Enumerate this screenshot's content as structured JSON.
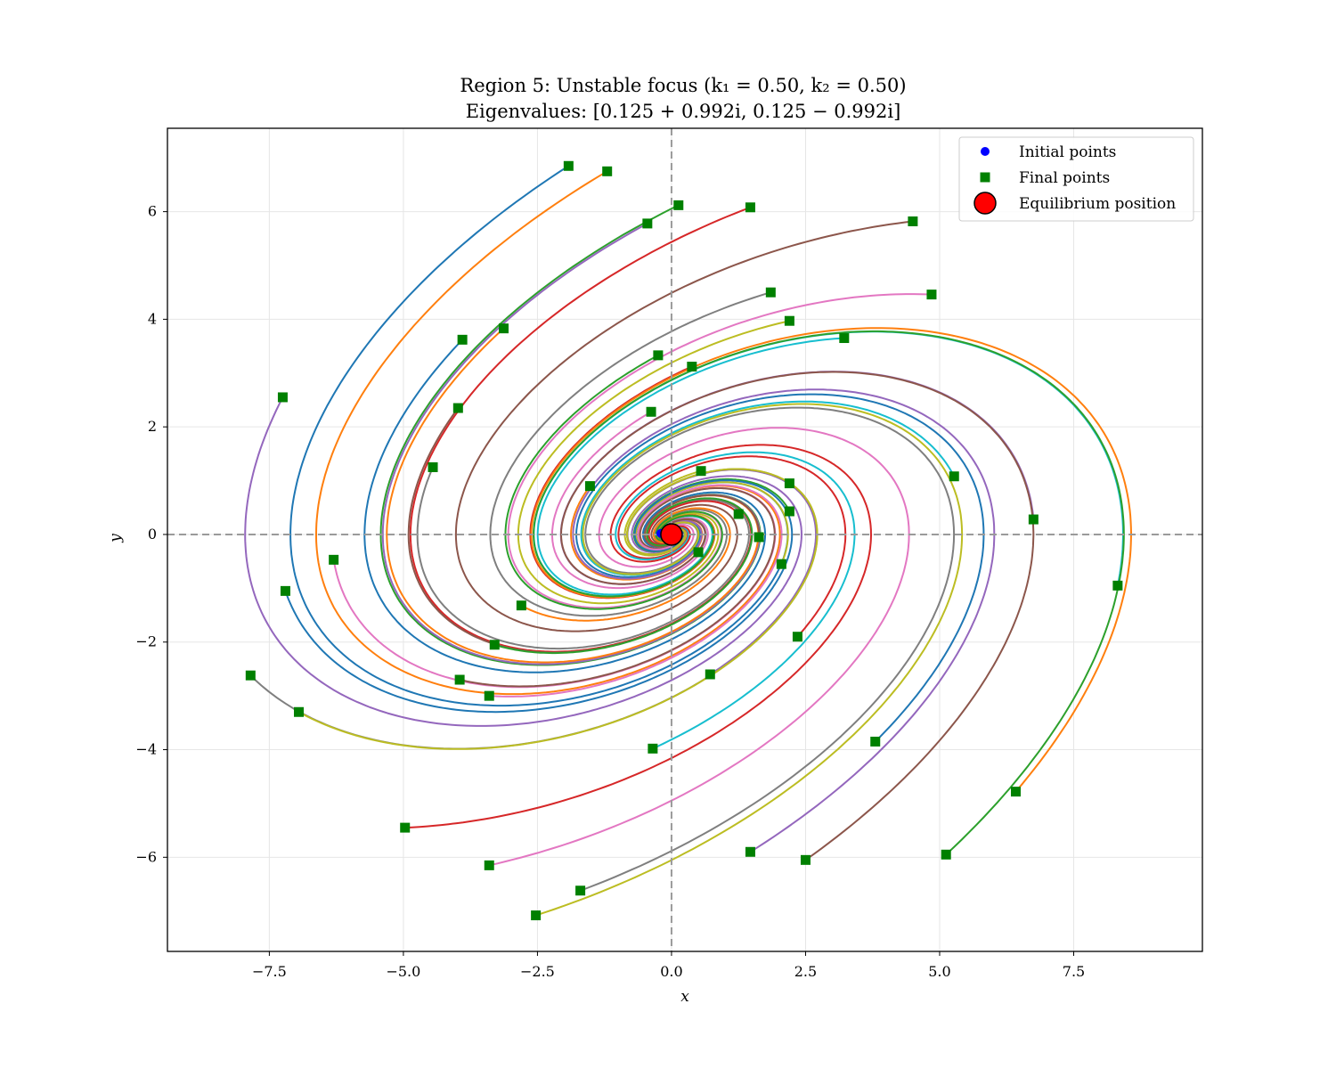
{
  "chart_data": {
    "type": "line",
    "title_line1": "Region 5: Unstable focus (k₁ = 0.50, k₂ = 0.50)",
    "title_line2": "Eigenvalues: [0.125 + 0.992i, 0.125 − 0.992i]",
    "xlabel": "x",
    "ylabel": "y",
    "xlim": [
      -9.4,
      9.9
    ],
    "ylim": [
      -7.75,
      7.55
    ],
    "xticks": [
      -7.5,
      -5.0,
      -2.5,
      0.0,
      2.5,
      5.0,
      7.5
    ],
    "yticks": [
      -6,
      -4,
      -2,
      0,
      2,
      4,
      6
    ],
    "xtick_labels": [
      "−7.5",
      "−5.0",
      "−2.5",
      "0.0",
      "2.5",
      "5.0",
      "7.5"
    ],
    "ytick_labels": [
      "−6",
      "−4",
      "−2",
      "0",
      "2",
      "4",
      "6"
    ],
    "grid": true,
    "reference_lines": {
      "x": 0,
      "y": 0,
      "style": "dashed",
      "color": "#9a9a9a"
    },
    "legend_position": "top-right",
    "legend": [
      {
        "label": "Initial points",
        "marker": "circle",
        "color": "#0000ff"
      },
      {
        "label": "Final points",
        "marker": "square",
        "color": "#008000"
      },
      {
        "label": "Equilibrium position",
        "marker": "large-circle",
        "color": "#ff0000"
      }
    ],
    "equilibrium": {
      "x": 0,
      "y": 0
    },
    "model": {
      "k1": 0.5,
      "k2": 0.5,
      "eigen_real": 0.125,
      "eigen_imag": 0.992
    },
    "series_colors": [
      "#1f77b4",
      "#ff7f0e",
      "#2ca02c",
      "#d62728",
      "#9467bd",
      "#8c564b",
      "#e377c2",
      "#7f7f7f",
      "#bcbd22",
      "#17becf"
    ],
    "final_points": [
      [
        -1.92,
        6.85
      ],
      [
        -1.2,
        6.75
      ],
      [
        0.13,
        6.12
      ],
      [
        1.47,
        6.08
      ],
      [
        -0.45,
        5.78
      ],
      [
        4.5,
        5.82
      ],
      [
        4.85,
        4.46
      ],
      [
        1.85,
        4.5
      ],
      [
        2.2,
        3.97
      ],
      [
        3.22,
        3.65
      ],
      [
        -3.9,
        3.62
      ],
      [
        -3.13,
        3.83
      ],
      [
        -0.25,
        3.33
      ],
      [
        0.38,
        3.12
      ],
      [
        -7.25,
        2.55
      ],
      [
        -3.98,
        2.35
      ],
      [
        -0.38,
        2.28
      ],
      [
        -4.45,
        1.25
      ],
      [
        0.55,
        1.18
      ],
      [
        5.27,
        1.08
      ],
      [
        2.2,
        0.95
      ],
      [
        -1.52,
        0.9
      ],
      [
        2.2,
        0.43
      ],
      [
        1.25,
        0.38
      ],
      [
        6.75,
        0.28
      ],
      [
        1.63,
        -0.05
      ],
      [
        -6.3,
        -0.47
      ],
      [
        0.5,
        -0.33
      ],
      [
        2.05,
        -0.55
      ],
      [
        8.32,
        -0.95
      ],
      [
        -7.2,
        -1.05
      ],
      [
        -2.8,
        -1.32
      ],
      [
        -3.3,
        -2.05
      ],
      [
        2.35,
        -1.9
      ],
      [
        0.72,
        -2.6
      ],
      [
        -3.95,
        -2.7
      ],
      [
        -3.4,
        -3.0
      ],
      [
        -7.85,
        -2.62
      ],
      [
        -6.95,
        -3.3
      ],
      [
        -0.35,
        -3.98
      ],
      [
        3.8,
        -3.85
      ],
      [
        6.42,
        -4.78
      ],
      [
        5.12,
        -5.95
      ],
      [
        -4.97,
        -5.45
      ],
      [
        1.47,
        -5.9
      ],
      [
        2.5,
        -6.05
      ],
      [
        -3.4,
        -6.15
      ],
      [
        -1.7,
        -6.62
      ],
      [
        -2.53,
        -7.08
      ]
    ],
    "initial_points": [
      [
        -0.2,
        0.02
      ],
      [
        -0.12,
        -0.05
      ],
      [
        -0.05,
        0.05
      ],
      [
        0.08,
        -0.03
      ]
    ]
  }
}
